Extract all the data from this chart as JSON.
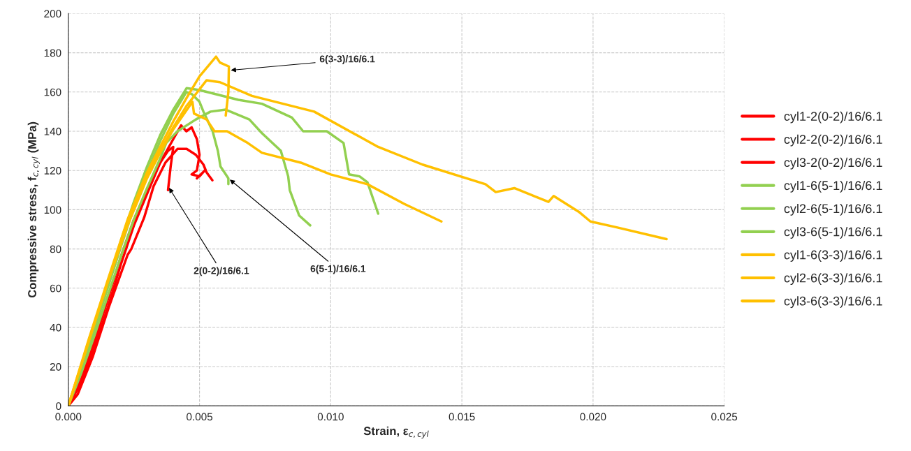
{
  "chart_data": {
    "type": "line",
    "xlabel": "Strain, ε$_{c,cyl}$",
    "ylabel": "Compressive stress, f$_{c,cyl}$ (MPa)",
    "xlim": [
      0,
      0.025
    ],
    "ylim": [
      0,
      200
    ],
    "xticks": [
      {
        "value": 0,
        "label": "0.000"
      },
      {
        "value": 0.005,
        "label": "0.005"
      },
      {
        "value": 0.01,
        "label": "0.010"
      },
      {
        "value": 0.015,
        "label": "0.015"
      },
      {
        "value": 0.02,
        "label": "0.020"
      },
      {
        "value": 0.025,
        "label": "0.025"
      }
    ],
    "yticks": [
      0,
      20,
      40,
      60,
      80,
      100,
      120,
      140,
      160,
      180,
      200
    ],
    "grid": true,
    "legend": "right",
    "marker": "none",
    "line_style": "solid",
    "series": [
      {
        "name": "cyl1-2(0-2)/16/6.1",
        "color": "#ff0000",
        "x": [
          0,
          0.0005,
          0.001,
          0.0015,
          0.002,
          0.0025,
          0.003,
          0.0035,
          0.004,
          0.0043,
          0.0045,
          0.0047,
          0.0049,
          0.005,
          0.0049,
          0.0047,
          0.005,
          0.0052,
          0.0049
        ],
        "values": [
          0,
          12,
          30,
          50,
          72,
          92,
          108,
          124,
          136,
          143,
          140,
          142,
          136,
          128,
          120,
          118,
          117,
          120,
          116
        ]
      },
      {
        "name": "cyl2-2(0-2)/16/6.1",
        "color": "#ff0000",
        "x": [
          0,
          0.00036,
          0.00093,
          0.00156,
          0.00226,
          0.0024,
          0.00289,
          0.00325,
          0.0037,
          0.00416,
          0.00451,
          0.00486,
          0.00515,
          0.00527,
          0.00549
        ],
        "values": [
          0,
          6,
          25,
          51,
          77,
          80,
          96,
          112,
          124,
          131,
          131,
          128,
          123,
          119,
          115
        ]
      },
      {
        "name": "cyl3-2(0-2)/16/6.1",
        "color": "#ff0000",
        "x": [
          0,
          0.0005,
          0.001,
          0.0015,
          0.002,
          0.0025,
          0.003,
          0.0035,
          0.0038,
          0.004,
          0.0039,
          0.0038
        ],
        "values": [
          0,
          14,
          33,
          54,
          76,
          95,
          110,
          124,
          130,
          132,
          122,
          110
        ]
      },
      {
        "name": "cyl1-6(5-1)/16/6.1",
        "color": "#92d050",
        "x": [
          0,
          0.0005,
          0.001,
          0.0015,
          0.002,
          0.0025,
          0.003,
          0.0035,
          0.004,
          0.00451,
          0.005,
          0.00648,
          0.00738,
          0.00852,
          0.00895,
          0.00985,
          0.01049,
          0.0107,
          0.0111,
          0.0114,
          0.01181
        ],
        "values": [
          0,
          20,
          40,
          62,
          84,
          104,
          122,
          138,
          151,
          162,
          161,
          156,
          154,
          147,
          140,
          140,
          134,
          118,
          117,
          114,
          98
        ]
      },
      {
        "name": "cyl2-6(5-1)/16/6.1",
        "color": "#92d050",
        "x": [
          0,
          0.0005,
          0.001,
          0.0015,
          0.002,
          0.0025,
          0.003,
          0.0035,
          0.004,
          0.0045,
          0.0047,
          0.005,
          0.00515,
          0.0055,
          0.0057,
          0.0058,
          0.006,
          0.0061,
          0.0061
        ],
        "values": [
          0,
          19,
          39,
          60,
          81,
          101,
          119,
          135,
          149,
          160,
          159,
          155,
          150,
          140,
          130,
          122,
          118,
          116,
          113
        ]
      },
      {
        "name": "cyl3-6(5-1)/16/6.1",
        "color": "#92d050",
        "x": [
          0,
          0.0005,
          0.001,
          0.0015,
          0.002,
          0.0025,
          0.003,
          0.0035,
          0.00373,
          0.00416,
          0.00486,
          0.00542,
          0.006,
          0.0069,
          0.00738,
          0.0081,
          0.00838,
          0.00844,
          0.0088,
          0.00922
        ],
        "values": [
          0,
          17,
          36,
          56,
          76,
          95,
          111,
          126,
          134,
          140,
          146,
          150,
          151,
          146,
          139,
          130,
          117,
          110,
          97,
          92
        ]
      },
      {
        "name": "cyl1-6(3-3)/16/6.1",
        "color": "#ffc000",
        "x": [
          0,
          0.00078,
          0.0015,
          0.00226,
          0.003,
          0.00346,
          0.004,
          0.00451,
          0.005,
          0.00563,
          0.00578,
          0.00612,
          0.0061,
          0.006
        ],
        "values": [
          0,
          34,
          64,
          95,
          119,
          131,
          145,
          157,
          168,
          178,
          175,
          173,
          160,
          148
        ]
      },
      {
        "name": "cyl2-6(3-3)/16/6.1",
        "color": "#ffc000",
        "x": [
          0,
          0.00078,
          0.0015,
          0.00226,
          0.003,
          0.00346,
          0.004,
          0.00451,
          0.00527,
          0.00578,
          0.007,
          0.00937,
          0.01181,
          0.0135,
          0.0159,
          0.01629,
          0.017,
          0.0183,
          0.0185,
          0.01945,
          0.0199,
          0.0209,
          0.0228
        ],
        "values": [
          0,
          33,
          63,
          93,
          117,
          129,
          142,
          153,
          166,
          165,
          158,
          150,
          132,
          123,
          113,
          109,
          111,
          104,
          107,
          99,
          94,
          91,
          85
        ]
      },
      {
        "name": "cyl3-6(3-3)/16/6.1",
        "color": "#ffc000",
        "x": [
          0,
          0.00078,
          0.0015,
          0.00226,
          0.003,
          0.00346,
          0.004,
          0.00473,
          0.00479,
          0.00527,
          0.00557,
          0.00605,
          0.00684,
          0.00738,
          0.00886,
          0.01,
          0.0114,
          0.0128,
          0.01422
        ],
        "values": [
          0,
          33,
          63,
          92,
          116,
          128,
          141,
          155,
          149,
          146,
          140,
          140,
          134,
          129,
          124,
          118,
          113,
          103,
          94
        ]
      }
    ],
    "annotations": [
      {
        "text": "6(3-3)/16/6.1",
        "x": 0.00612,
        "y": 171
      },
      {
        "text": "2(0-2)/16/6.1",
        "x": 0.0038,
        "y": 112
      },
      {
        "text": "6(5-1)/16/6.1",
        "x": 0.0061,
        "y": 116
      }
    ]
  }
}
